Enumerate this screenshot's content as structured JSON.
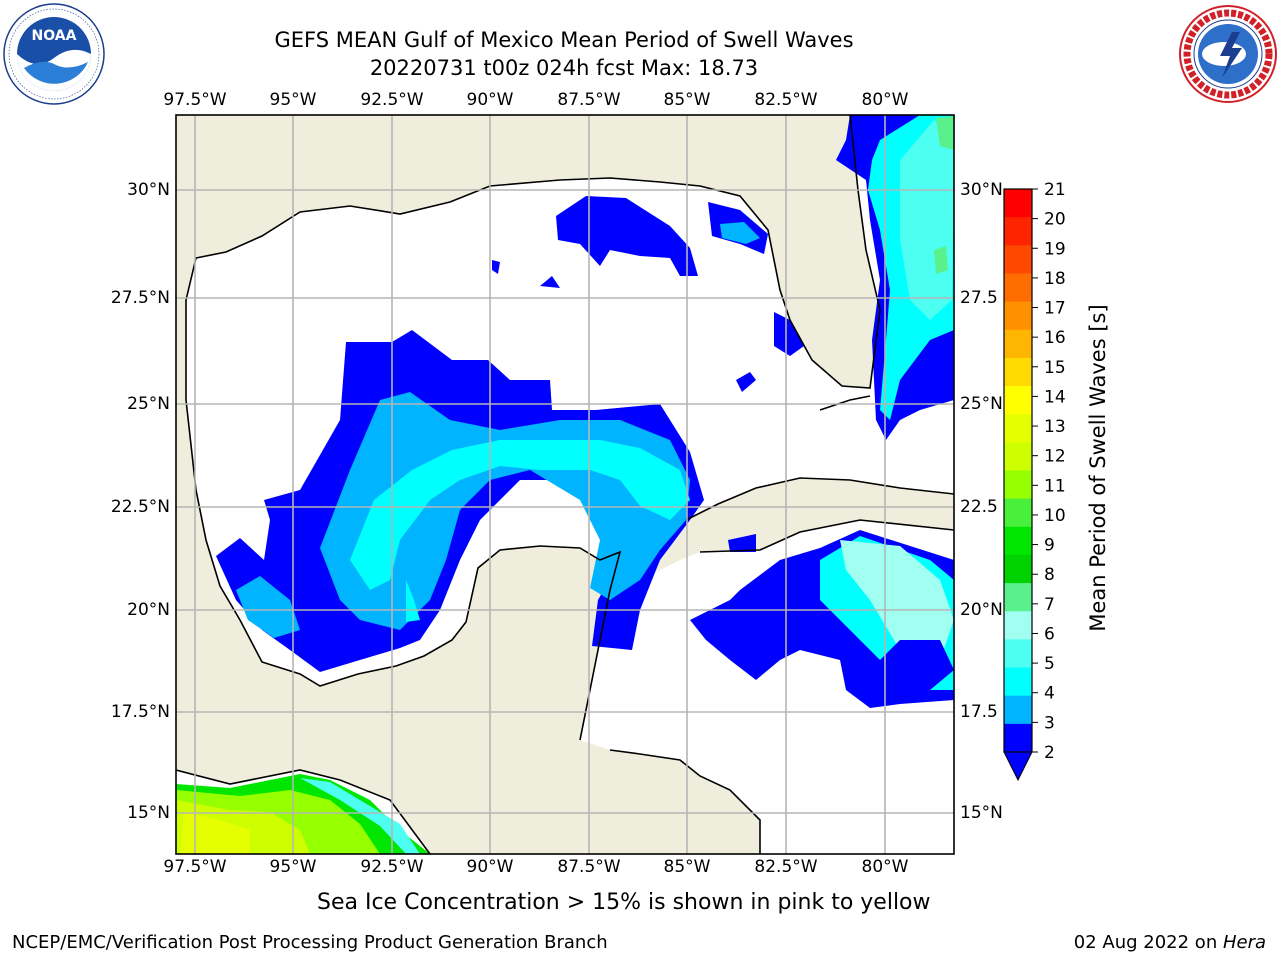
{
  "header": {
    "title_line1": "GEFS MEAN Gulf of Mexico Mean Period of Swell Waves",
    "title_line2": "20220731 t00z 024h fcst   Max: 18.73"
  },
  "logos": {
    "left": {
      "name": "noaa-logo",
      "text": "NOAA",
      "ring_text": "NATIONAL OCEANIC AND ATMOSPHERIC ADMINISTRATION · U.S. DEPARTMENT OF COMMERCE"
    },
    "right": {
      "name": "nws-logo",
      "ring_text": "NATIONAL WEATHER SERVICE"
    }
  },
  "map": {
    "lon_ticks": [
      "97.5°W",
      "95°W",
      "92.5°W",
      "90°W",
      "87.5°W",
      "85°W",
      "82.5°W",
      "80°W"
    ],
    "lat_ticks_left": [
      "30°N",
      "27.5°N",
      "25°N",
      "22.5°N",
      "20°N",
      "17.5°N",
      "15°N"
    ],
    "lat_ticks_right": [
      "30°N",
      "27.5",
      "25°N",
      "22.5",
      "20°N",
      "17.5",
      "15°N"
    ],
    "colors": {
      "land": "#efeedd",
      "ocean": "#ffffff",
      "grid": "#b5b5b5",
      "coast": "#000000"
    }
  },
  "colorbar": {
    "label": "Mean Period of Swell Waves [s]",
    "ticks": [
      "21",
      "20",
      "19",
      "18",
      "17",
      "16",
      "15",
      "14",
      "13",
      "12",
      "11",
      "10",
      "9",
      "8",
      "7",
      "6",
      "5",
      "4",
      "3",
      "2"
    ],
    "colors_top_down": [
      "#ff0000",
      "#ff2400",
      "#ff4800",
      "#ff6d00",
      "#ff9100",
      "#ffb600",
      "#ffda00",
      "#ffff00",
      "#e6ff00",
      "#cdff00",
      "#96ff00",
      "#48f03c",
      "#00e600",
      "#00d200",
      "#5af08c",
      "#a0fff0",
      "#4cfff0",
      "#00ffff",
      "#00b4ff",
      "#0000ff"
    ]
  },
  "note": "Sea Ice Concentration > 15% is shown in pink to yellow",
  "footer": {
    "left": "NCEP/EMC/Verification Post Processing Product Generation Branch",
    "right_prefix": "02 Aug 2022 on ",
    "right_host": "Hera"
  }
}
